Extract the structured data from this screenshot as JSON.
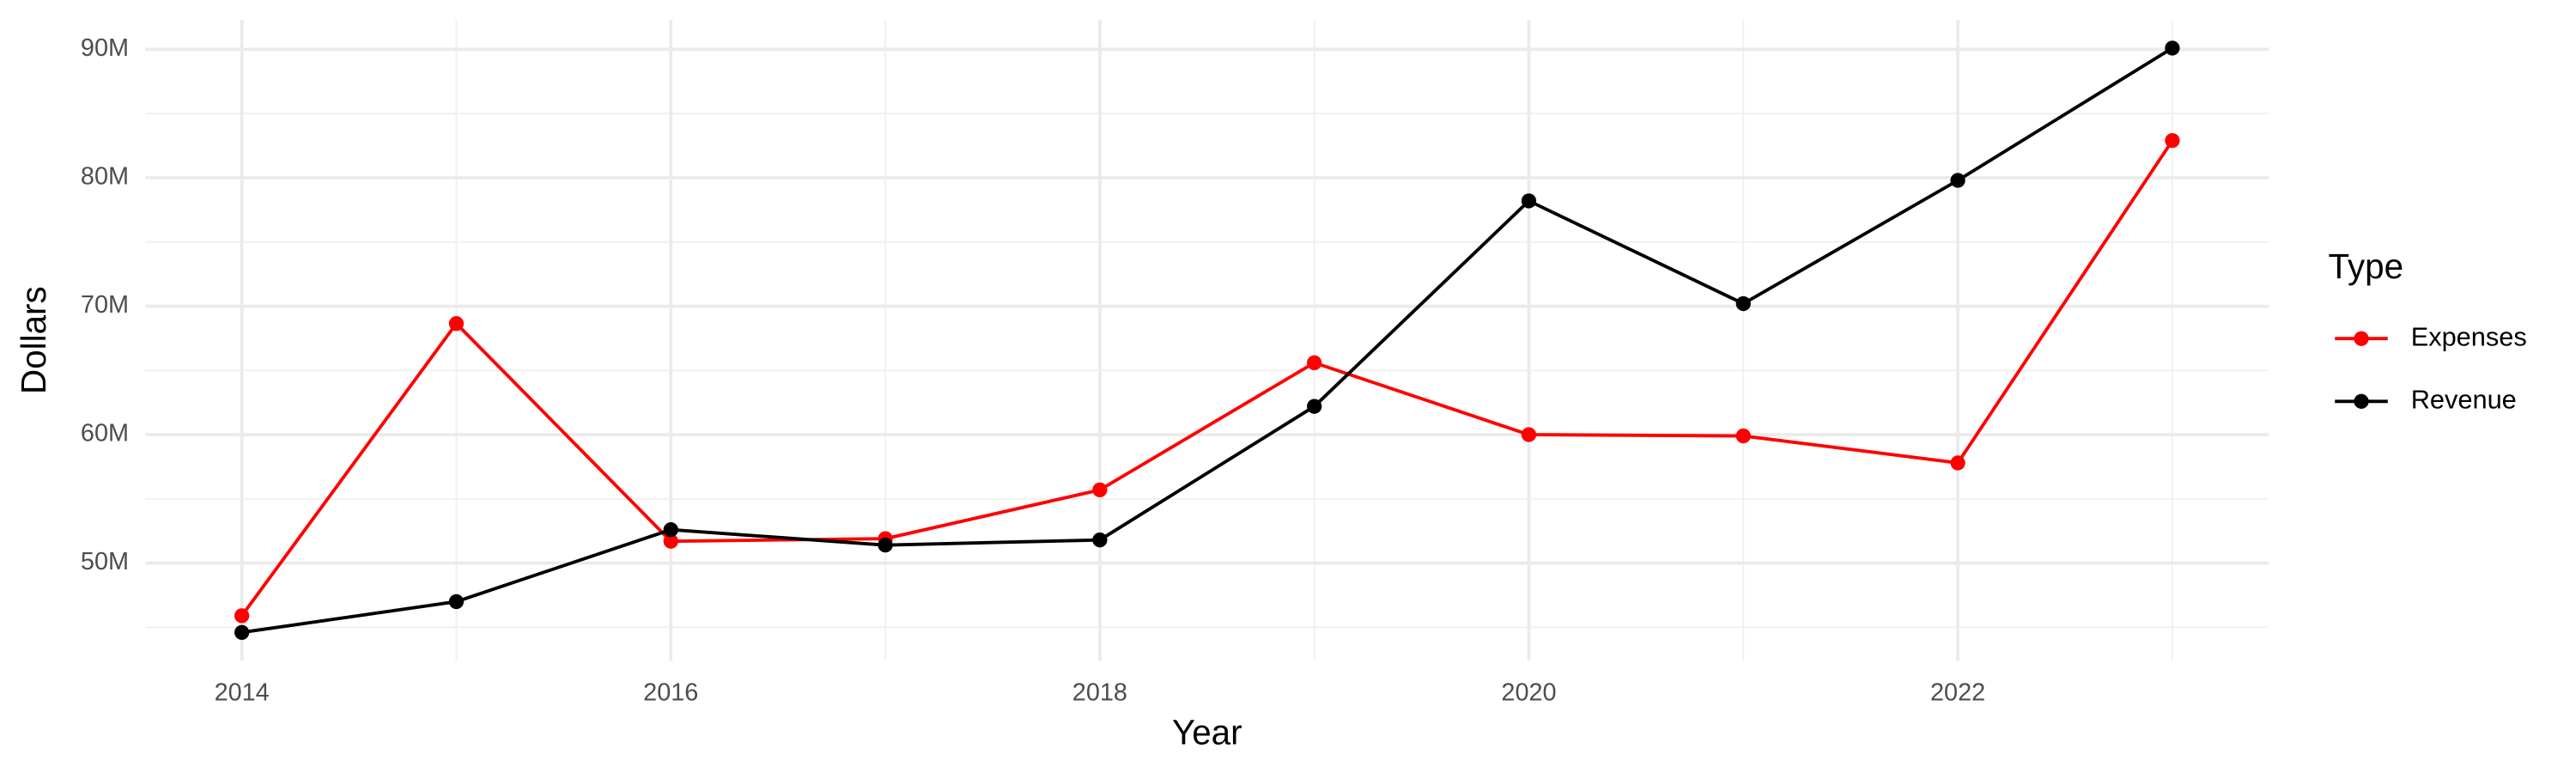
{
  "chart_data": {
    "type": "line",
    "x_label": "Year",
    "y_label": "Dollars",
    "legend_title": "Type",
    "x": [
      2014,
      2015,
      2016,
      2017,
      2018,
      2019,
      2020,
      2021,
      2022,
      2023
    ],
    "series": [
      {
        "name": "Expenses",
        "color": "#ff0000",
        "values": [
          45900000,
          68650000,
          51700000,
          51900000,
          55700000,
          65600000,
          60000000,
          59900000,
          57800000,
          82900000
        ]
      },
      {
        "name": "Revenue",
        "color": "#000000",
        "values": [
          44600000,
          47000000,
          52600000,
          51400000,
          51800000,
          62200000,
          78200000,
          70200000,
          79800000,
          90100000
        ]
      }
    ],
    "xlim": [
      2013.55,
      2023.45
    ],
    "xticks": [
      2014,
      2016,
      2018,
      2020,
      2022
    ],
    "ylim": [
      42400000,
      92300000
    ],
    "yticks": [
      {
        "value": 50000000,
        "label": "50M"
      },
      {
        "value": 60000000,
        "label": "60M"
      },
      {
        "value": 70000000,
        "label": "70M"
      },
      {
        "value": 80000000,
        "label": "80M"
      },
      {
        "value": 90000000,
        "label": "90M"
      }
    ],
    "grid": true,
    "legend": "right"
  }
}
